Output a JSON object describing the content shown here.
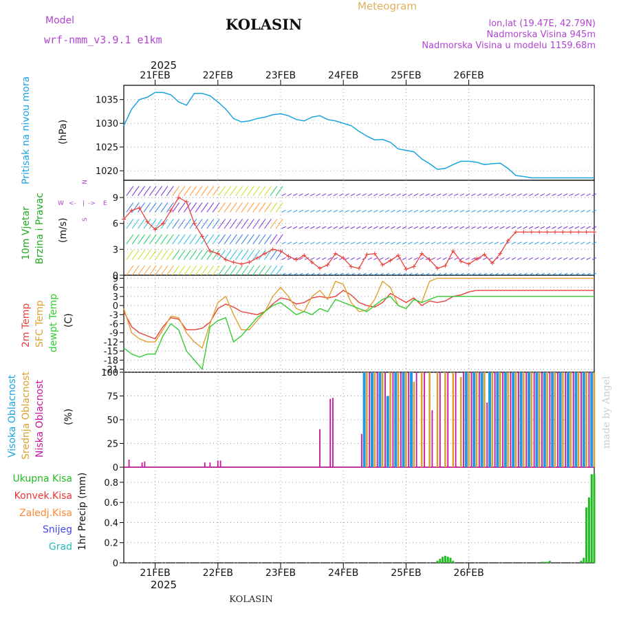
{
  "header": {
    "model_label": "Model",
    "model_name": "wrf-nmm_v3.9.1  e1km",
    "station": "KOLASIN",
    "product": "Meteogram",
    "coords": "lon,lat (19.47E, 42.79N)",
    "elevation": "Nadmorska Visina 945m",
    "model_elevation": "Nadmorska Visina u modelu 1159.68m",
    "year": "2025",
    "bottom_station": "KOLASIN",
    "credit": "made by Angel"
  },
  "colors": {
    "pressure": "#1aa3e0",
    "temp2m": "#e8413c",
    "sfc_temp": "#e0a030",
    "dewpoint": "#33cc33",
    "high_cloud": "#2299e0",
    "mid_cloud": "#d9a030",
    "low_cloud": "#cc1199",
    "total_precip": "#22bb22",
    "conv_precip": "#ee3333",
    "strat_precip": "#ff8833",
    "snow": "#4444ee",
    "graupel": "#22bbbb",
    "header_purple": "#b044d0",
    "header_orange": "#e0b060"
  },
  "dates": [
    "21FEB",
    "22FEB",
    "23FEB",
    "24FEB",
    "25FEB",
    "26FEB"
  ],
  "panels": {
    "pressure": {
      "ylabel_a": "Pritisak na nivou mora",
      "unit": "(hPa)",
      "ticks": [
        "1035",
        "1030",
        "1025",
        "1020"
      ]
    },
    "wind": {
      "ylabel_a": "10m Vjetar",
      "ylabel_b": "Brzina i Pravac",
      "unit": "(m/s)",
      "ticks": [
        "9",
        "6",
        "3",
        "0"
      ],
      "compass": [
        "W",
        "<-",
        "|",
        "->",
        "E",
        "N",
        "S"
      ]
    },
    "temp": {
      "ylabel_a": "2m Temp",
      "ylabel_b": "SFC Temp",
      "ylabel_c": "dewpt Temp",
      "unit": "(C)",
      "ticks": [
        "9",
        "6",
        "3",
        "0",
        "-3",
        "-6",
        "-9",
        "-12",
        "-15",
        "-18",
        "-21"
      ]
    },
    "cloud": {
      "ylabel_a": "Visoka Oblacnost",
      "ylabel_b": "Srednja Oblacnost",
      "ylabel_c": "Niska Oblacnost",
      "unit": "(%)",
      "ticks": [
        "100",
        "75",
        "50",
        "25",
        "0"
      ]
    },
    "precip": {
      "legend": [
        "Ukupna Kisa",
        "Konvek.Kisa",
        "Zaledj.Kisa",
        "Snijeg",
        "Grad"
      ],
      "unit": "1hr Precip (mm)",
      "ticks": [
        "0.8",
        "0.6",
        "0.4",
        "0.2",
        "0"
      ]
    }
  },
  "chart_data": [
    {
      "type": "line",
      "name": "pressure",
      "x_unit": "hours from 20 FEB 12:00",
      "ylim": [
        1018,
        1038
      ],
      "series": [
        {
          "x": [
            0,
            3,
            6,
            9,
            12,
            15,
            18,
            21,
            24,
            27,
            30,
            33,
            36,
            39,
            42,
            45,
            48,
            51,
            54,
            57,
            60,
            63,
            66,
            69,
            72,
            75,
            78,
            81,
            84,
            87,
            90,
            93,
            96,
            99,
            102,
            105,
            108,
            111,
            114,
            117,
            120,
            123,
            126,
            129,
            132,
            135,
            138,
            141,
            144,
            147,
            150,
            153,
            156,
            159,
            162,
            165,
            168,
            171,
            174,
            177,
            180
          ],
          "values": [
            1029.5,
            1033.0,
            1035.0,
            1035.5,
            1036.5,
            1036.5,
            1036.0,
            1034.5,
            1033.8,
            1036.3,
            1036.3,
            1035.8,
            1034.5,
            1033.0,
            1031.0,
            1030.3,
            1030.5,
            1031.0,
            1031.3,
            1031.8,
            1032.0,
            1031.6,
            1030.8,
            1030.5,
            1031.3,
            1031.6,
            1030.8,
            1030.5,
            1030.0,
            1029.5,
            1028.3,
            1027.3,
            1026.5,
            1026.6,
            1026.0,
            1024.6,
            1024.3,
            1024.0,
            1022.5,
            1021.5,
            1020.3,
            1020.5,
            1021.3,
            1022.0,
            1022.0,
            1021.8,
            1021.3,
            1021.5,
            1021.6,
            1020.5,
            1019.0,
            1018.8,
            1018.5,
            1018.5,
            1018.5,
            1018.5,
            1018.5,
            1018.5,
            1018.5,
            1018.5,
            1018.5
          ]
        }
      ]
    },
    {
      "type": "line",
      "name": "wind_speed",
      "ylim": [
        0,
        11
      ],
      "series": [
        {
          "x": [
            0,
            3,
            6,
            9,
            12,
            15,
            18,
            21,
            24,
            27,
            30,
            33,
            36,
            39,
            42,
            45,
            48,
            51,
            54,
            57,
            60,
            63,
            66,
            69,
            72,
            75,
            78,
            81,
            84,
            87,
            90,
            93,
            96,
            99,
            102,
            105,
            108,
            111,
            114,
            117,
            120,
            123,
            126,
            129,
            132,
            135,
            138,
            141,
            144,
            147,
            150,
            153,
            156,
            159,
            162,
            165,
            168,
            171,
            174,
            177,
            180
          ],
          "values": [
            6.5,
            7.5,
            7.8,
            6.2,
            5.3,
            6.0,
            7.5,
            9.0,
            8.5,
            6.0,
            4.5,
            2.8,
            2.5,
            1.8,
            1.5,
            1.3,
            1.5,
            2.0,
            2.5,
            3.0,
            2.8,
            2.2,
            1.8,
            2.3,
            1.5,
            0.8,
            1.2,
            2.5,
            2.0,
            1.0,
            0.8,
            2.4,
            2.5,
            1.2,
            1.7,
            2.3,
            0.7,
            1.0,
            2.5,
            1.8,
            0.8,
            1.1,
            2.8,
            1.6,
            1.3,
            1.9,
            2.4,
            1.4,
            2.5,
            4.0,
            5.0,
            5.0,
            5.0,
            5.0,
            5.0,
            5.0,
            5.0,
            5.0,
            5.0,
            5.0,
            5.0
          ]
        }
      ]
    },
    {
      "type": "line",
      "name": "temperature",
      "ylim": [
        -22,
        10
      ],
      "series": [
        {
          "name": "2m Temp",
          "x": [
            0,
            3,
            6,
            9,
            12,
            15,
            18,
            21,
            24,
            27,
            30,
            33,
            36,
            39,
            42,
            45,
            48,
            51,
            54,
            57,
            60,
            63,
            66,
            69,
            72,
            75,
            78,
            81,
            84,
            87,
            90,
            93,
            96,
            99,
            102,
            105,
            108,
            111,
            114,
            117,
            120,
            123,
            126,
            129,
            132,
            135,
            138,
            141,
            144,
            147,
            150,
            153,
            156,
            159,
            162,
            165,
            168,
            171,
            174,
            177,
            180
          ],
          "values": [
            -2,
            -7,
            -9,
            -10,
            -11,
            -7,
            -4,
            -4.5,
            -8,
            -8,
            -7.5,
            -5.5,
            -1,
            0.5,
            -0.5,
            -2,
            -2.5,
            -3,
            -2,
            0.5,
            2.5,
            2,
            0.5,
            1,
            2.5,
            3,
            2.5,
            3,
            5,
            3.5,
            1,
            0,
            -0.5,
            1,
            4,
            2.5,
            1,
            2.5,
            0,
            1.5,
            1,
            1.5,
            3,
            3.5,
            4.5,
            5,
            5,
            5,
            5,
            5,
            5,
            5,
            5,
            5,
            5,
            5,
            5,
            5,
            5,
            5,
            5
          ]
        },
        {
          "name": "SFC Temp",
          "x": [
            0,
            3,
            6,
            9,
            12,
            15,
            18,
            21,
            24,
            27,
            30,
            33,
            36,
            39,
            42,
            45,
            48,
            51,
            54,
            57,
            60,
            63,
            66,
            69,
            72,
            75,
            78,
            81,
            84,
            87,
            90,
            93,
            96,
            99,
            102,
            105,
            108,
            111,
            114,
            117,
            120,
            123,
            126,
            129,
            132,
            135,
            138,
            141,
            144,
            147,
            150,
            153,
            156,
            159,
            162,
            165,
            168,
            171,
            174,
            177,
            180
          ],
          "values": [
            -1,
            -9,
            -11,
            -12,
            -12,
            -8,
            -3.5,
            -4,
            -9,
            -12,
            -14,
            -6,
            1,
            3,
            -3,
            -8,
            -8,
            -5,
            -2,
            3,
            6,
            3,
            -1,
            -2,
            3,
            5,
            2,
            8,
            7,
            1,
            -2,
            -1.5,
            2,
            8,
            6,
            0,
            -1,
            2,
            1,
            8,
            9,
            9,
            9,
            9,
            9,
            9,
            9,
            9,
            9,
            9,
            9,
            9,
            9,
            9,
            9,
            9,
            9,
            9,
            9,
            9,
            9
          ]
        },
        {
          "name": "dewpt Temp",
          "x": [
            0,
            3,
            6,
            9,
            12,
            15,
            18,
            21,
            24,
            27,
            30,
            33,
            36,
            39,
            42,
            45,
            48,
            51,
            54,
            57,
            60,
            63,
            66,
            69,
            72,
            75,
            78,
            81,
            84,
            87,
            90,
            93,
            96,
            99,
            102,
            105,
            108,
            111,
            114,
            117,
            120,
            123,
            126,
            129,
            132,
            135,
            138,
            141,
            144,
            147,
            150,
            153,
            156,
            159,
            162,
            165,
            168,
            171,
            174,
            177,
            180
          ],
          "values": [
            -14,
            -16,
            -17,
            -16,
            -16,
            -10,
            -6,
            -8,
            -15,
            -18,
            -21,
            -7,
            -5,
            -4,
            -12,
            -10,
            -7,
            -4,
            -2,
            0,
            1,
            -1,
            -3,
            -2,
            -3,
            -1,
            -2,
            2,
            1,
            0,
            -1,
            -2,
            0,
            2,
            3,
            0,
            -1,
            2,
            1,
            2,
            3,
            3,
            3,
            3,
            3,
            3,
            3,
            3,
            3,
            3,
            3,
            3,
            3,
            3,
            3,
            3,
            3,
            3,
            3,
            3,
            3
          ]
        }
      ]
    },
    {
      "type": "bar",
      "name": "cloud_cover",
      "ylim": [
        0,
        100
      ],
      "series": [
        {
          "name": "Visoka Oblacnost",
          "x": [
            92,
            95,
            98,
            101,
            104,
            107,
            110,
            131,
            134,
            137,
            140,
            143,
            146,
            149,
            152,
            155,
            158,
            161,
            164,
            167,
            170,
            173,
            176,
            179
          ],
          "values": [
            100,
            100,
            100,
            75,
            100,
            100,
            100,
            100,
            100,
            100,
            100,
            100,
            100,
            100,
            100,
            100,
            100,
            100,
            100,
            100,
            100,
            100,
            100,
            100
          ]
        },
        {
          "name": "Srednja Oblacnost",
          "x": [
            93,
            96,
            99,
            102,
            105,
            108,
            111,
            114,
            117,
            120,
            123,
            126,
            129,
            132,
            135,
            138,
            141,
            144,
            147,
            150,
            153,
            156,
            159,
            162,
            165,
            168,
            171,
            174,
            177,
            180
          ],
          "values": [
            100,
            100,
            100,
            100,
            100,
            100,
            90,
            100,
            100,
            100,
            100,
            100,
            95,
            100,
            100,
            100,
            100,
            100,
            100,
            100,
            100,
            100,
            100,
            100,
            100,
            100,
            100,
            100,
            100,
            100
          ]
        },
        {
          "name": "Niska Oblacnost",
          "x": [
            2,
            7,
            8,
            31,
            33,
            36,
            37,
            75,
            79,
            80,
            91,
            94,
            97,
            100,
            103,
            106,
            109,
            112,
            115,
            118,
            121,
            124,
            127,
            130,
            133,
            136,
            139,
            142,
            145,
            148,
            151,
            154,
            157,
            160,
            163,
            166,
            169,
            172,
            175,
            178
          ],
          "values": [
            8,
            5,
            6,
            5,
            5,
            7,
            7,
            40,
            72,
            73,
            35,
            100,
            100,
            100,
            100,
            100,
            100,
            100,
            100,
            60,
            100,
            100,
            100,
            100,
            100,
            100,
            68,
            100,
            100,
            100,
            100,
            100,
            100,
            100,
            100,
            100,
            100,
            100,
            100,
            100
          ]
        }
      ]
    },
    {
      "type": "bar",
      "name": "precipitation",
      "ylim": [
        0,
        0.95
      ],
      "series": [
        {
          "name": "Ukupna Kisa",
          "x": [
            120,
            121,
            122,
            123,
            124,
            125,
            126,
            160,
            161,
            162,
            163,
            175,
            176,
            177,
            178,
            179,
            180
          ],
          "values": [
            0.02,
            0.04,
            0.06,
            0.07,
            0.06,
            0.05,
            0.02,
            0.01,
            0.01,
            0.01,
            0.02,
            0.02,
            0.05,
            0.55,
            0.65,
            0.88,
            0.88
          ]
        }
      ]
    }
  ]
}
